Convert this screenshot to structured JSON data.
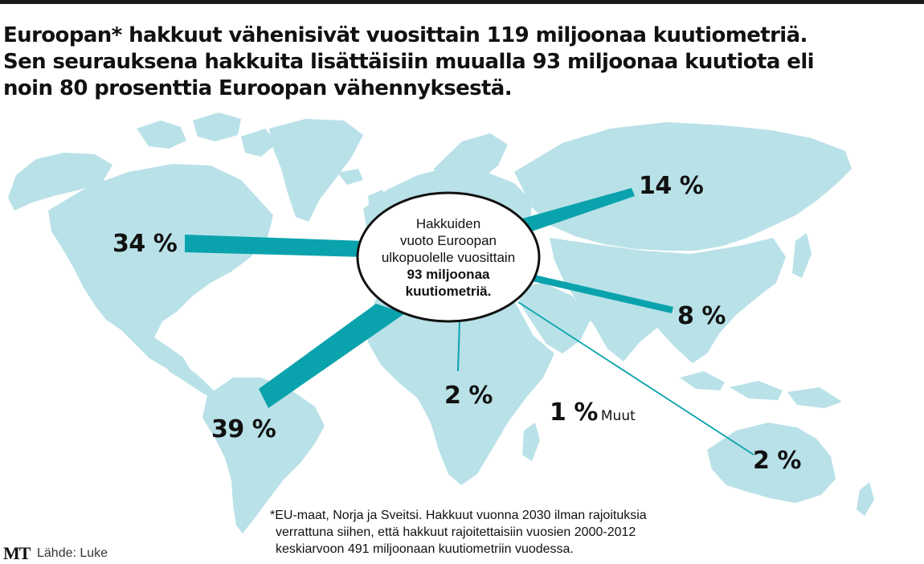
{
  "headline": [
    "Euroopan* hakkuut vähenisivät vuosittain 119 miljoonaa kuutiometriä.",
    "Sen seurauksena hakkuita lisättäisiin muualla 93 miljoonaa kuutiota eli",
    "noin 80 prosenttia Euroopan vähennyksestä."
  ],
  "center_bubble": {
    "lines": [
      "Hakkuiden",
      "vuoto Euroopan",
      "ulkopuolelle vuosittain"
    ],
    "bold_lines": [
      "93 miljoonaa",
      "kuutiometriä."
    ]
  },
  "flows": {
    "north_america": {
      "label": "34 %",
      "share": 34
    },
    "south_america": {
      "label": "39 %",
      "share": 39
    },
    "asia_north": {
      "label": "14 %",
      "share": 14
    },
    "east_asia": {
      "label": "8 %",
      "share": 8
    },
    "africa": {
      "label": "2 %",
      "share": 2
    },
    "oceania": {
      "label": "2 %",
      "share": 2
    },
    "other": {
      "label": "1 %",
      "share": 1,
      "name": "Muut"
    }
  },
  "footnote": [
    "*EU-maat, Norja ja Sveitsi. Hakkuut vuonna 2030 ilman rajoituksia",
    "verrattuna siihen, että hakkuut rajoitettaisiin vuosien 2000-2012",
    "keskiarvoon 491 miljoonaan kuutiometriin vuodessa."
  ],
  "brand": "MT",
  "source": "Lähde: Luke",
  "colors": {
    "land": "#b9e1e8",
    "flow": "#0aa3ad",
    "text": "#111111",
    "bubble_fill": "#ffffff",
    "bubble_stroke": "#111111"
  }
}
